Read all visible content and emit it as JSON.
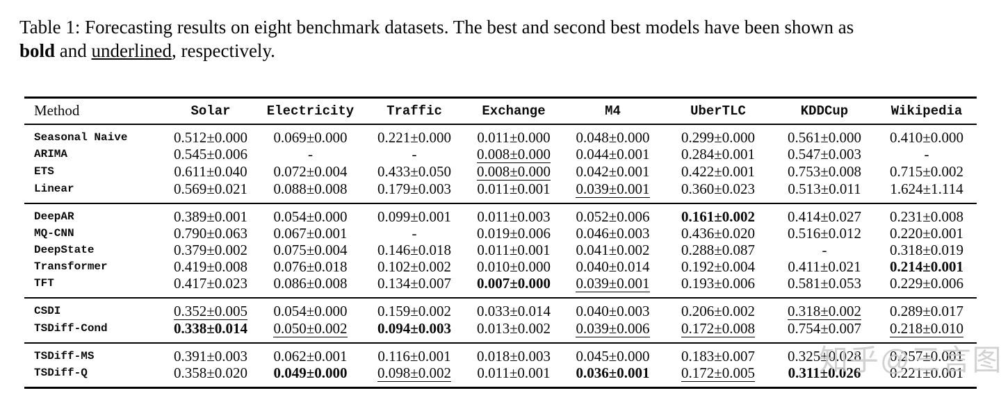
{
  "caption": {
    "text_before_bold": "Table 1: Forecasting results on eight benchmark datasets. The best and second best models have been shown as",
    "bold_word": "bold",
    "text_between": " and ",
    "underlined_word": "underlined",
    "text_after": ", respectively."
  },
  "table": {
    "columns": [
      "Method",
      "Solar",
      "Electricity",
      "Traffic",
      "Exchange",
      "M4",
      "UberTLC",
      "KDDCup",
      "Wikipedia"
    ],
    "groups": [
      {
        "rows": [
          {
            "method": "Seasonal Naive",
            "cells": [
              {
                "text": "0.512±0.000",
                "style": "normal"
              },
              {
                "text": "0.069±0.000",
                "style": "normal"
              },
              {
                "text": "0.221±0.000",
                "style": "normal"
              },
              {
                "text": "0.011±0.000",
                "style": "normal"
              },
              {
                "text": "0.048±0.000",
                "style": "normal"
              },
              {
                "text": "0.299±0.000",
                "style": "normal"
              },
              {
                "text": "0.561±0.000",
                "style": "normal"
              },
              {
                "text": "0.410±0.000",
                "style": "normal"
              }
            ]
          },
          {
            "method": "ARIMA",
            "cells": [
              {
                "text": "0.545±0.006",
                "style": "normal"
              },
              {
                "text": "-",
                "style": "normal"
              },
              {
                "text": "-",
                "style": "normal"
              },
              {
                "text": "0.008±0.000",
                "style": "underline"
              },
              {
                "text": "0.044±0.001",
                "style": "normal"
              },
              {
                "text": "0.284±0.001",
                "style": "normal"
              },
              {
                "text": "0.547±0.003",
                "style": "normal"
              },
              {
                "text": "-",
                "style": "normal"
              }
            ]
          },
          {
            "method": "ETS",
            "cells": [
              {
                "text": "0.611±0.040",
                "style": "normal"
              },
              {
                "text": "0.072±0.004",
                "style": "normal"
              },
              {
                "text": "0.433±0.050",
                "style": "normal"
              },
              {
                "text": "0.008±0.000",
                "style": "underline"
              },
              {
                "text": "0.042±0.001",
                "style": "normal"
              },
              {
                "text": "0.422±0.001",
                "style": "normal"
              },
              {
                "text": "0.753±0.008",
                "style": "normal"
              },
              {
                "text": "0.715±0.002",
                "style": "normal"
              }
            ]
          },
          {
            "method": "Linear",
            "cells": [
              {
                "text": "0.569±0.021",
                "style": "normal"
              },
              {
                "text": "0.088±0.008",
                "style": "normal"
              },
              {
                "text": "0.179±0.003",
                "style": "normal"
              },
              {
                "text": "0.011±0.001",
                "style": "normal"
              },
              {
                "text": "0.039±0.001",
                "style": "underline"
              },
              {
                "text": "0.360±0.023",
                "style": "normal"
              },
              {
                "text": "0.513±0.011",
                "style": "normal"
              },
              {
                "text": "1.624±1.114",
                "style": "normal"
              }
            ]
          }
        ]
      },
      {
        "rows": [
          {
            "method": "DeepAR",
            "cells": [
              {
                "text": "0.389±0.001",
                "style": "normal"
              },
              {
                "text": "0.054±0.000",
                "style": "normal"
              },
              {
                "text": "0.099±0.001",
                "style": "normal"
              },
              {
                "text": "0.011±0.003",
                "style": "normal"
              },
              {
                "text": "0.052±0.006",
                "style": "normal"
              },
              {
                "text": "0.161±0.002",
                "style": "bold"
              },
              {
                "text": "0.414±0.027",
                "style": "normal"
              },
              {
                "text": "0.231±0.008",
                "style": "normal"
              }
            ]
          },
          {
            "method": "MQ-CNN",
            "cells": [
              {
                "text": "0.790±0.063",
                "style": "normal"
              },
              {
                "text": "0.067±0.001",
                "style": "normal"
              },
              {
                "text": "-",
                "style": "normal"
              },
              {
                "text": "0.019±0.006",
                "style": "normal"
              },
              {
                "text": "0.046±0.003",
                "style": "normal"
              },
              {
                "text": "0.436±0.020",
                "style": "normal"
              },
              {
                "text": "0.516±0.012",
                "style": "normal"
              },
              {
                "text": "0.220±0.001",
                "style": "normal"
              }
            ]
          },
          {
            "method": "DeepState",
            "cells": [
              {
                "text": "0.379±0.002",
                "style": "normal"
              },
              {
                "text": "0.075±0.004",
                "style": "normal"
              },
              {
                "text": "0.146±0.018",
                "style": "normal"
              },
              {
                "text": "0.011±0.001",
                "style": "normal"
              },
              {
                "text": "0.041±0.002",
                "style": "normal"
              },
              {
                "text": "0.288±0.087",
                "style": "normal"
              },
              {
                "text": "-",
                "style": "normal"
              },
              {
                "text": "0.318±0.019",
                "style": "normal"
              }
            ]
          },
          {
            "method": "Transformer",
            "cells": [
              {
                "text": "0.419±0.008",
                "style": "normal"
              },
              {
                "text": "0.076±0.018",
                "style": "normal"
              },
              {
                "text": "0.102±0.002",
                "style": "normal"
              },
              {
                "text": "0.010±0.000",
                "style": "normal"
              },
              {
                "text": "0.040±0.014",
                "style": "normal"
              },
              {
                "text": "0.192±0.004",
                "style": "normal"
              },
              {
                "text": "0.411±0.021",
                "style": "normal"
              },
              {
                "text": "0.214±0.001",
                "style": "bold"
              }
            ]
          },
          {
            "method": "TFT",
            "cells": [
              {
                "text": "0.417±0.023",
                "style": "normal"
              },
              {
                "text": "0.086±0.008",
                "style": "normal"
              },
              {
                "text": "0.134±0.007",
                "style": "normal"
              },
              {
                "text": "0.007±0.000",
                "style": "bold"
              },
              {
                "text": "0.039±0.001",
                "style": "underline"
              },
              {
                "text": "0.193±0.006",
                "style": "normal"
              },
              {
                "text": "0.581±0.053",
                "style": "normal"
              },
              {
                "text": "0.229±0.006",
                "style": "normal"
              }
            ]
          }
        ]
      },
      {
        "rows": [
          {
            "method": "CSDI",
            "cells": [
              {
                "text": "0.352±0.005",
                "style": "underline"
              },
              {
                "text": "0.054±0.000",
                "style": "normal"
              },
              {
                "text": "0.159±0.002",
                "style": "normal"
              },
              {
                "text": "0.033±0.014",
                "style": "normal"
              },
              {
                "text": "0.040±0.003",
                "style": "normal"
              },
              {
                "text": "0.206±0.002",
                "style": "normal"
              },
              {
                "text": "0.318±0.002",
                "style": "underline"
              },
              {
                "text": "0.289±0.017",
                "style": "normal"
              }
            ]
          },
          {
            "method": "TSDiff-Cond",
            "cells": [
              {
                "text": "0.338±0.014",
                "style": "bold"
              },
              {
                "text": "0.050±0.002",
                "style": "underline"
              },
              {
                "text": "0.094±0.003",
                "style": "bold"
              },
              {
                "text": "0.013±0.002",
                "style": "normal"
              },
              {
                "text": "0.039±0.006",
                "style": "underline"
              },
              {
                "text": "0.172±0.008",
                "style": "underline"
              },
              {
                "text": "0.754±0.007",
                "style": "normal"
              },
              {
                "text": "0.218±0.010",
                "style": "underline"
              }
            ]
          }
        ]
      },
      {
        "rows": [
          {
            "method": "TSDiff-MS",
            "cells": [
              {
                "text": "0.391±0.003",
                "style": "normal"
              },
              {
                "text": "0.062±0.001",
                "style": "normal"
              },
              {
                "text": "0.116±0.001",
                "style": "normal"
              },
              {
                "text": "0.018±0.003",
                "style": "normal"
              },
              {
                "text": "0.045±0.000",
                "style": "normal"
              },
              {
                "text": "0.183±0.007",
                "style": "normal"
              },
              {
                "text": "0.325±0.028",
                "style": "normal"
              },
              {
                "text": "0.257±0.001",
                "style": "normal"
              }
            ]
          },
          {
            "method": "TSDiff-Q",
            "cells": [
              {
                "text": "0.358±0.020",
                "style": "normal"
              },
              {
                "text": "0.049±0.000",
                "style": "bold"
              },
              {
                "text": "0.098±0.002",
                "style": "underline"
              },
              {
                "text": "0.011±0.001",
                "style": "normal"
              },
              {
                "text": "0.036±0.001",
                "style": "bold"
              },
              {
                "text": "0.172±0.005",
                "style": "underline"
              },
              {
                "text": "0.311±0.026",
                "style": "bold"
              },
              {
                "text": "0.221±0.001",
                "style": "normal"
              }
            ]
          }
        ]
      }
    ]
  },
  "watermark": {
    "text": "知乎@三言图"
  },
  "colors": {
    "text": "#0a0a0a",
    "rule": "#000000",
    "background": "#ffffff",
    "watermark": "#c8c8c8"
  }
}
